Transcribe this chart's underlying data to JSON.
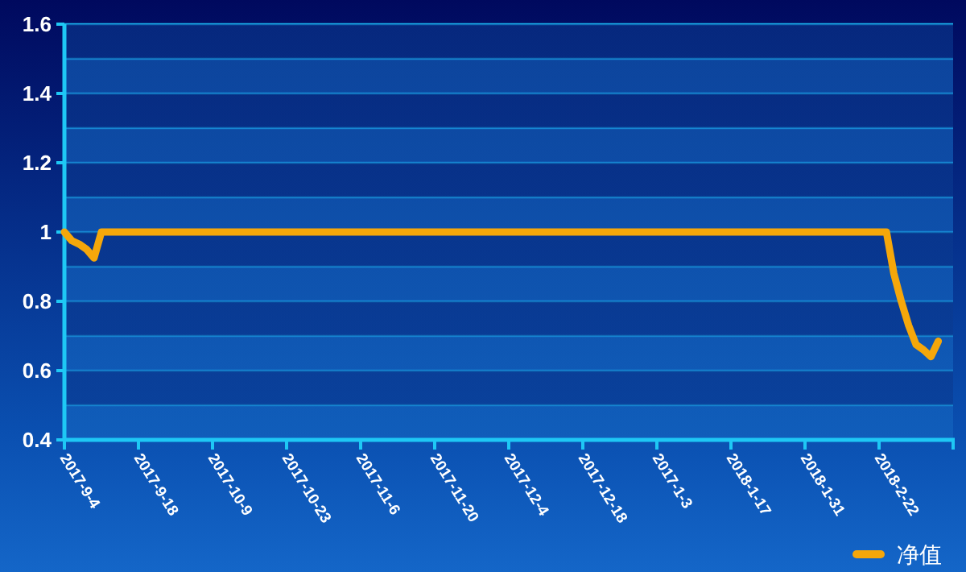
{
  "chart_data": {
    "type": "line",
    "categories": [
      "2017-9-4",
      null,
      null,
      null,
      null,
      null,
      null,
      null,
      null,
      null,
      "2017-9-18",
      null,
      null,
      null,
      null,
      null,
      null,
      null,
      null,
      null,
      "2017-10-9",
      null,
      null,
      null,
      null,
      null,
      null,
      null,
      null,
      null,
      "2017-10-23",
      null,
      null,
      null,
      null,
      null,
      null,
      null,
      null,
      null,
      "2017-11-6",
      null,
      null,
      null,
      null,
      null,
      null,
      null,
      null,
      null,
      "2017-11-20",
      null,
      null,
      null,
      null,
      null,
      null,
      null,
      null,
      null,
      "2017-12-4",
      null,
      null,
      null,
      null,
      null,
      null,
      null,
      null,
      null,
      "2017-12-18",
      null,
      null,
      null,
      null,
      null,
      null,
      null,
      null,
      null,
      "2017-1-3",
      null,
      null,
      null,
      null,
      null,
      null,
      null,
      null,
      null,
      "2018-1-17",
      null,
      null,
      null,
      null,
      null,
      null,
      null,
      null,
      null,
      "2018-1-31",
      null,
      null,
      null,
      null,
      null,
      null,
      null,
      null,
      null,
      "2018-2-22",
      null,
      null,
      null,
      null,
      null,
      null,
      null,
      null,
      null,
      null
    ],
    "series": [
      {
        "name": "净值",
        "color": "#f5a70a",
        "values": [
          1,
          0.975,
          0.965,
          0.95,
          0.925,
          1,
          1,
          1,
          1,
          1,
          1,
          1,
          1,
          1,
          1,
          1,
          1,
          1,
          1,
          1,
          1,
          1,
          1,
          1,
          1,
          1,
          1,
          1,
          1,
          1,
          1,
          1,
          1,
          1,
          1,
          1,
          1,
          1,
          1,
          1,
          1,
          1,
          1,
          1,
          1,
          1,
          1,
          1,
          1,
          1,
          1,
          1,
          1,
          1,
          1,
          1,
          1,
          1,
          1,
          1,
          1,
          1,
          1,
          1,
          1,
          1,
          1,
          1,
          1,
          1,
          1,
          1,
          1,
          1,
          1,
          1,
          1,
          1,
          1,
          1,
          1,
          1,
          1,
          1,
          1,
          1,
          1,
          1,
          1,
          1,
          1,
          1,
          1,
          1,
          1,
          1,
          1,
          1,
          1,
          1,
          1,
          1,
          1,
          1,
          1,
          1,
          1,
          1,
          1,
          1,
          1,
          1,
          0.88,
          0.8,
          0.73,
          0.675,
          0.66,
          0.64,
          0.685,
          null,
          null
        ]
      }
    ],
    "ylim": [
      0.4,
      1.6
    ],
    "yticks": [
      0.4,
      {
        "value": 0.5,
        "label": null
      },
      0.6,
      {
        "value": 0.7,
        "label": null
      },
      0.8,
      {
        "value": 0.9,
        "label": null
      },
      1,
      {
        "value": 1.1,
        "label": null
      },
      1.2,
      {
        "value": 1.3,
        "label": null
      },
      1.4,
      {
        "value": 1.5,
        "label": null
      },
      1.6
    ],
    "grid": "y",
    "legend": "bottom right",
    "marker": "none",
    "line_style": "solid"
  }
}
